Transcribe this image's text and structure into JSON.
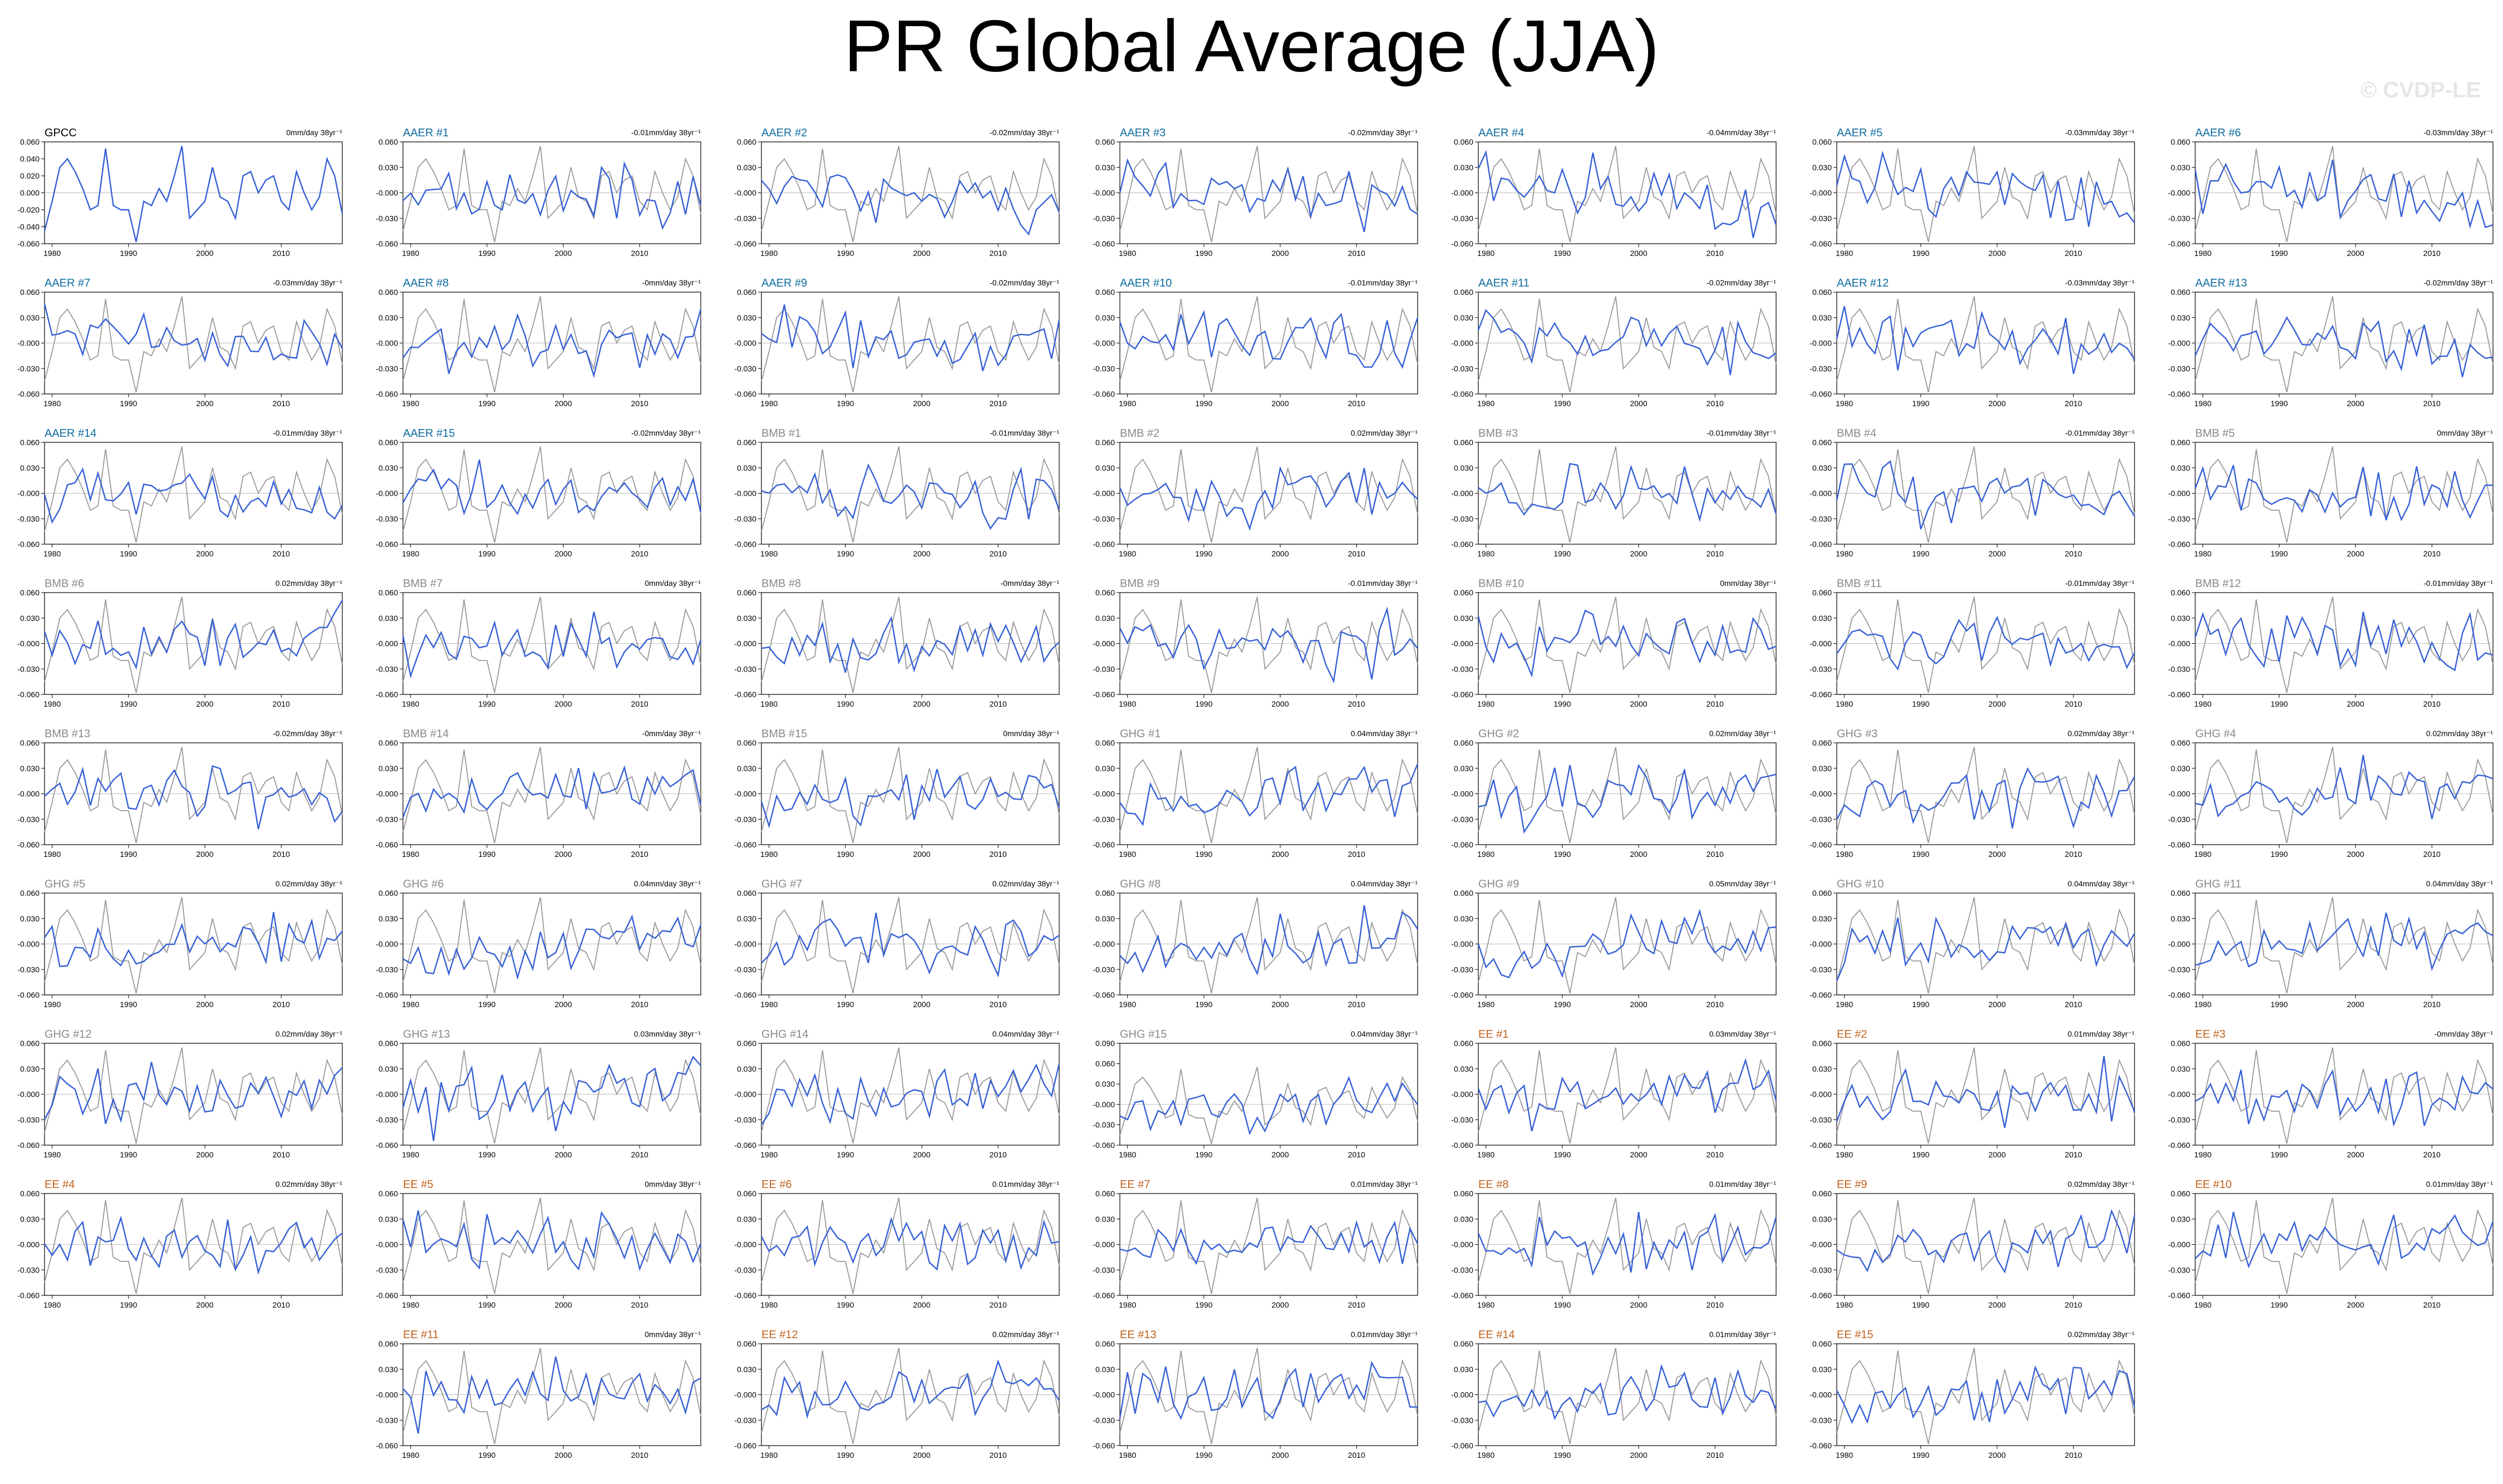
{
  "title": "PR Global Average (JJA)",
  "watermark": "© CVDP-LE",
  "colors": {
    "aer": "#0e6c9f",
    "bmb": "#8a8a8a",
    "ghg": "#8a8a8a",
    "ee": "#c1631e",
    "obs": "#000000",
    "model_line": "#3560d6",
    "obs_line": "#9a9a9a",
    "zero": "#bdbdbd"
  },
  "chart_data": {
    "type": "line",
    "x_range": [
      1979,
      2018
    ],
    "x_ticks": [
      1980,
      1990,
      2000,
      2010
    ],
    "default_y_ticks": [
      "0.060",
      "0.030",
      "-0.000",
      "-0.030",
      "-0.060"
    ],
    "obs_y_ticks": [
      "0.060",
      "0.040",
      "0.020",
      "0.000",
      "-0.020",
      "-0.040",
      "-0.060"
    ],
    "ghg15_y_ticks": [
      "0.090",
      "0.060",
      "0.030",
      "-0.000",
      "-0.030",
      "-0.060"
    ],
    "obs_series": [
      -0.045,
      -0.01,
      0.03,
      0.04,
      0.025,
      0.005,
      -0.02,
      -0.015,
      0.052,
      -0.015,
      -0.02,
      -0.02,
      -0.058,
      -0.01,
      -0.015,
      0.005,
      -0.01,
      0.02,
      0.055,
      -0.03,
      -0.02,
      -0.01,
      0.03,
      -0.005,
      -0.01,
      -0.03,
      0.02,
      0.025,
      0.0,
      0.015,
      0.02,
      -0.01,
      -0.02,
      0.025,
      0.0,
      -0.02,
      -0.005,
      0.04,
      0.02,
      -0.025
    ],
    "panels": [
      {
        "label": "GPCC",
        "group": "obs",
        "trend": "0mm/day 38yr⁻¹"
      },
      {
        "label": "AAER #1",
        "group": "aer",
        "trend": "-0.01mm/day 38yr⁻¹"
      },
      {
        "label": "AAER #2",
        "group": "aer",
        "trend": "-0.02mm/day 38yr⁻¹"
      },
      {
        "label": "AAER #3",
        "group": "aer",
        "trend": "-0.02mm/day 38yr⁻¹"
      },
      {
        "label": "AAER #4",
        "group": "aer",
        "trend": "-0.04mm/day 38yr⁻¹"
      },
      {
        "label": "AAER #5",
        "group": "aer",
        "trend": "-0.03mm/day 38yr⁻¹"
      },
      {
        "label": "AAER #6",
        "group": "aer",
        "trend": "-0.03mm/day 38yr⁻¹"
      },
      {
        "label": "AAER #7",
        "group": "aer",
        "trend": "-0.03mm/day 38yr⁻¹"
      },
      {
        "label": "AAER #8",
        "group": "aer",
        "trend": "-0mm/day 38yr⁻¹"
      },
      {
        "label": "AAER #9",
        "group": "aer",
        "trend": "-0.02mm/day 38yr⁻¹"
      },
      {
        "label": "AAER #10",
        "group": "aer",
        "trend": "-0.01mm/day 38yr⁻¹"
      },
      {
        "label": "AAER #11",
        "group": "aer",
        "trend": "-0.02mm/day 38yr⁻¹"
      },
      {
        "label": "AAER #12",
        "group": "aer",
        "trend": "-0.03mm/day 38yr⁻¹"
      },
      {
        "label": "AAER #13",
        "group": "aer",
        "trend": "-0.02mm/day 38yr⁻¹"
      },
      {
        "label": "AAER #14",
        "group": "aer",
        "trend": "-0.01mm/day 38yr⁻¹"
      },
      {
        "label": "AAER #15",
        "group": "aer",
        "trend": "-0.02mm/day 38yr⁻¹"
      },
      {
        "label": "BMB #1",
        "group": "bmb",
        "trend": "-0.01mm/day 38yr⁻¹"
      },
      {
        "label": "BMB #2",
        "group": "bmb",
        "trend": "0.02mm/day 38yr⁻¹"
      },
      {
        "label": "BMB #3",
        "group": "bmb",
        "trend": "-0.01mm/day 38yr⁻¹"
      },
      {
        "label": "BMB #4",
        "group": "bmb",
        "trend": "-0.01mm/day 38yr⁻¹"
      },
      {
        "label": "BMB #5",
        "group": "bmb",
        "trend": "0mm/day 38yr⁻¹"
      },
      {
        "label": "BMB #6",
        "group": "bmb",
        "trend": "0.02mm/day 38yr⁻¹"
      },
      {
        "label": "BMB #7",
        "group": "bmb",
        "trend": "0mm/day 38yr⁻¹"
      },
      {
        "label": "BMB #8",
        "group": "bmb",
        "trend": "-0mm/day 38yr⁻¹"
      },
      {
        "label": "BMB #9",
        "group": "bmb",
        "trend": "-0.01mm/day 38yr⁻¹"
      },
      {
        "label": "BMB #10",
        "group": "bmb",
        "trend": "0mm/day 38yr⁻¹"
      },
      {
        "label": "BMB #11",
        "group": "bmb",
        "trend": "-0.01mm/day 38yr⁻¹"
      },
      {
        "label": "BMB #12",
        "group": "bmb",
        "trend": "-0.01mm/day 38yr⁻¹"
      },
      {
        "label": "BMB #13",
        "group": "bmb",
        "trend": "-0.02mm/day 38yr⁻¹"
      },
      {
        "label": "BMB #14",
        "group": "bmb",
        "trend": "-0mm/day 38yr⁻¹"
      },
      {
        "label": "BMB #15",
        "group": "bmb",
        "trend": "0mm/day 38yr⁻¹"
      },
      {
        "label": "GHG #1",
        "group": "ghg",
        "trend": "0.04mm/day 38yr⁻¹"
      },
      {
        "label": "GHG #2",
        "group": "ghg",
        "trend": "0.02mm/day 38yr⁻¹"
      },
      {
        "label": "GHG #3",
        "group": "ghg",
        "trend": "0.02mm/day 38yr⁻¹"
      },
      {
        "label": "GHG #4",
        "group": "ghg",
        "trend": "0.02mm/day 38yr⁻¹"
      },
      {
        "label": "GHG #5",
        "group": "ghg",
        "trend": "0.02mm/day 38yr⁻¹"
      },
      {
        "label": "GHG #6",
        "group": "ghg",
        "trend": "0.04mm/day 38yr⁻¹"
      },
      {
        "label": "GHG #7",
        "group": "ghg",
        "trend": "0.02mm/day 38yr⁻¹"
      },
      {
        "label": "GHG #8",
        "group": "ghg",
        "trend": "0.04mm/day 38yr⁻¹"
      },
      {
        "label": "GHG #9",
        "group": "ghg",
        "trend": "0.05mm/day 38yr⁻¹"
      },
      {
        "label": "GHG #10",
        "group": "ghg",
        "trend": "0.04mm/day 38yr⁻¹"
      },
      {
        "label": "GHG #11",
        "group": "ghg",
        "trend": "0.04mm/day 38yr⁻¹"
      },
      {
        "label": "GHG #12",
        "group": "ghg",
        "trend": "0.02mm/day 38yr⁻¹"
      },
      {
        "label": "GHG #13",
        "group": "ghg",
        "trend": "0.03mm/day 38yr⁻¹"
      },
      {
        "label": "GHG #14",
        "group": "ghg",
        "trend": "0.04mm/day 38yr⁻¹"
      },
      {
        "label": "GHG #15",
        "group": "ghg",
        "trend": "0.04mm/day 38yr⁻¹"
      },
      {
        "label": "EE #1",
        "group": "ee",
        "trend": "0.03mm/day 38yr⁻¹"
      },
      {
        "label": "EE #2",
        "group": "ee",
        "trend": "0.01mm/day 38yr⁻¹"
      },
      {
        "label": "EE #3",
        "group": "ee",
        "trend": "-0mm/day 38yr⁻¹"
      },
      {
        "label": "EE #4",
        "group": "ee",
        "trend": "0.02mm/day 38yr⁻¹"
      },
      {
        "label": "EE #5",
        "group": "ee",
        "trend": "0mm/day 38yr⁻¹"
      },
      {
        "label": "EE #6",
        "group": "ee",
        "trend": "0.01mm/day 38yr⁻¹"
      },
      {
        "label": "EE #7",
        "group": "ee",
        "trend": "0.01mm/day 38yr⁻¹"
      },
      {
        "label": "EE #8",
        "group": "ee",
        "trend": "0.01mm/day 38yr⁻¹"
      },
      {
        "label": "EE #9",
        "group": "ee",
        "trend": "0.02mm/day 38yr⁻¹"
      },
      {
        "label": "EE #10",
        "group": "ee",
        "trend": "0.01mm/day 38yr⁻¹"
      },
      {
        "label": "EE #11",
        "group": "ee",
        "trend": "0mm/day 38yr⁻¹"
      },
      {
        "label": "EE #12",
        "group": "ee",
        "trend": "0.02mm/day 38yr⁻¹"
      },
      {
        "label": "EE #13",
        "group": "ee",
        "trend": "0.01mm/day 38yr⁻¹"
      },
      {
        "label": "EE #14",
        "group": "ee",
        "trend": "0.01mm/day 38yr⁻¹"
      },
      {
        "label": "EE #15",
        "group": "ee",
        "trend": "0.02mm/day 38yr⁻¹"
      }
    ]
  }
}
